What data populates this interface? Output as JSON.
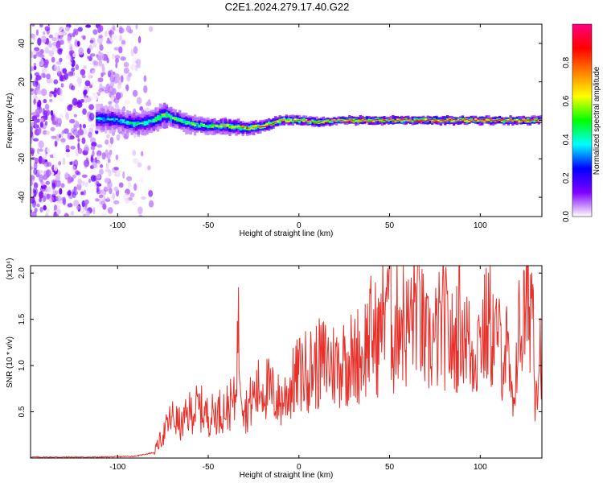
{
  "title": "C2E1.2024.279.17.40.G22",
  "chart_data": [
    {
      "type": "heatmap",
      "xlabel": "Height of straight line (km)",
      "ylabel": "Frequency (Hz)",
      "xlim": [
        -148,
        134
      ],
      "ylim": [
        -50,
        50
      ],
      "xticks": [
        -100,
        -50,
        0,
        50,
        100
      ],
      "yticks": [
        -40,
        -20,
        0,
        20,
        40
      ],
      "colorbar": {
        "label": "Normalized spectral amplitude",
        "range": [
          0,
          1
        ],
        "ticks": [
          "0.0",
          "0.2",
          "0.4",
          "0.6",
          "0.8"
        ],
        "colormap": [
          "#ffffff",
          "#8000ff",
          "#0000ff",
          "#00ffff",
          "#00ff00",
          "#ffff00",
          "#ff8000",
          "#ff0000",
          "#ff0080"
        ]
      },
      "ridge": {
        "description_points_x": [
          -110,
          -100,
          -90,
          -80,
          -75,
          -70,
          -60,
          -50,
          -40,
          -30,
          -20,
          -10,
          0,
          10,
          20,
          40,
          60,
          80,
          100,
          134
        ],
        "frequency_hz": [
          1,
          0,
          -2,
          0,
          3,
          1,
          -2,
          -3,
          -3,
          -4,
          -3,
          0,
          0,
          -1,
          0,
          0,
          0,
          0,
          0,
          0
        ],
        "peak_amplitude": [
          0.35,
          0.4,
          0.45,
          0.5,
          0.6,
          0.55,
          0.5,
          0.55,
          0.65,
          0.75,
          0.8,
          0.8,
          0.75,
          0.8,
          0.85,
          0.9,
          0.95,
          1.0,
          1.0,
          0.95
        ],
        "spread_hz": [
          7,
          6,
          6,
          6,
          6,
          5,
          5,
          4,
          4,
          3.5,
          3,
          2.5,
          2.5,
          2.5,
          2,
          2,
          2,
          2,
          2,
          2
        ]
      },
      "noise_region_x": [
        -148,
        -80
      ]
    },
    {
      "type": "line",
      "xlabel": "Height of straight line (km)",
      "ylabel": "SNR (10 * v/v)",
      "y_multiplier": "(x10⁴)",
      "xlim": [
        -148,
        134
      ],
      "ylim": [
        0,
        2.08
      ],
      "xticks": [
        -100,
        -50,
        0,
        50,
        100
      ],
      "yticks": [
        "0.5",
        "1.0",
        "1.5",
        "2.0"
      ],
      "color": "#e8302a",
      "series": [
        {
          "x": [
            -148,
            -130,
            -110,
            -90,
            -80,
            -75,
            -70,
            -65,
            -60,
            -55,
            -50,
            -45,
            -40,
            -35,
            -34,
            -30,
            -25,
            -20,
            -15,
            -10,
            -5,
            0,
            5,
            10,
            15,
            20,
            25,
            30,
            35,
            40,
            45,
            49,
            52,
            55,
            60,
            65,
            70,
            75,
            80,
            85,
            90,
            95,
            100,
            105,
            110,
            115,
            118,
            120,
            125,
            129,
            130,
            134
          ],
          "y": [
            0.01,
            0.01,
            0.01,
            0.02,
            0.06,
            0.25,
            0.45,
            0.35,
            0.5,
            0.55,
            0.45,
            0.5,
            0.55,
            0.6,
            1.48,
            0.5,
            0.65,
            0.8,
            0.7,
            0.6,
            0.75,
            0.9,
            0.95,
            1.0,
            1.05,
            1.0,
            1.05,
            1.1,
            1.15,
            1.35,
            1.25,
            2.05,
            1.2,
            1.6,
            1.35,
            1.75,
            1.2,
            1.3,
            1.45,
            1.2,
            1.6,
            1.1,
            1.3,
            1.45,
            1.2,
            1.15,
            0.45,
            1.25,
            1.55,
            1.88,
            0.75,
            1.3
          ]
        }
      ]
    }
  ]
}
